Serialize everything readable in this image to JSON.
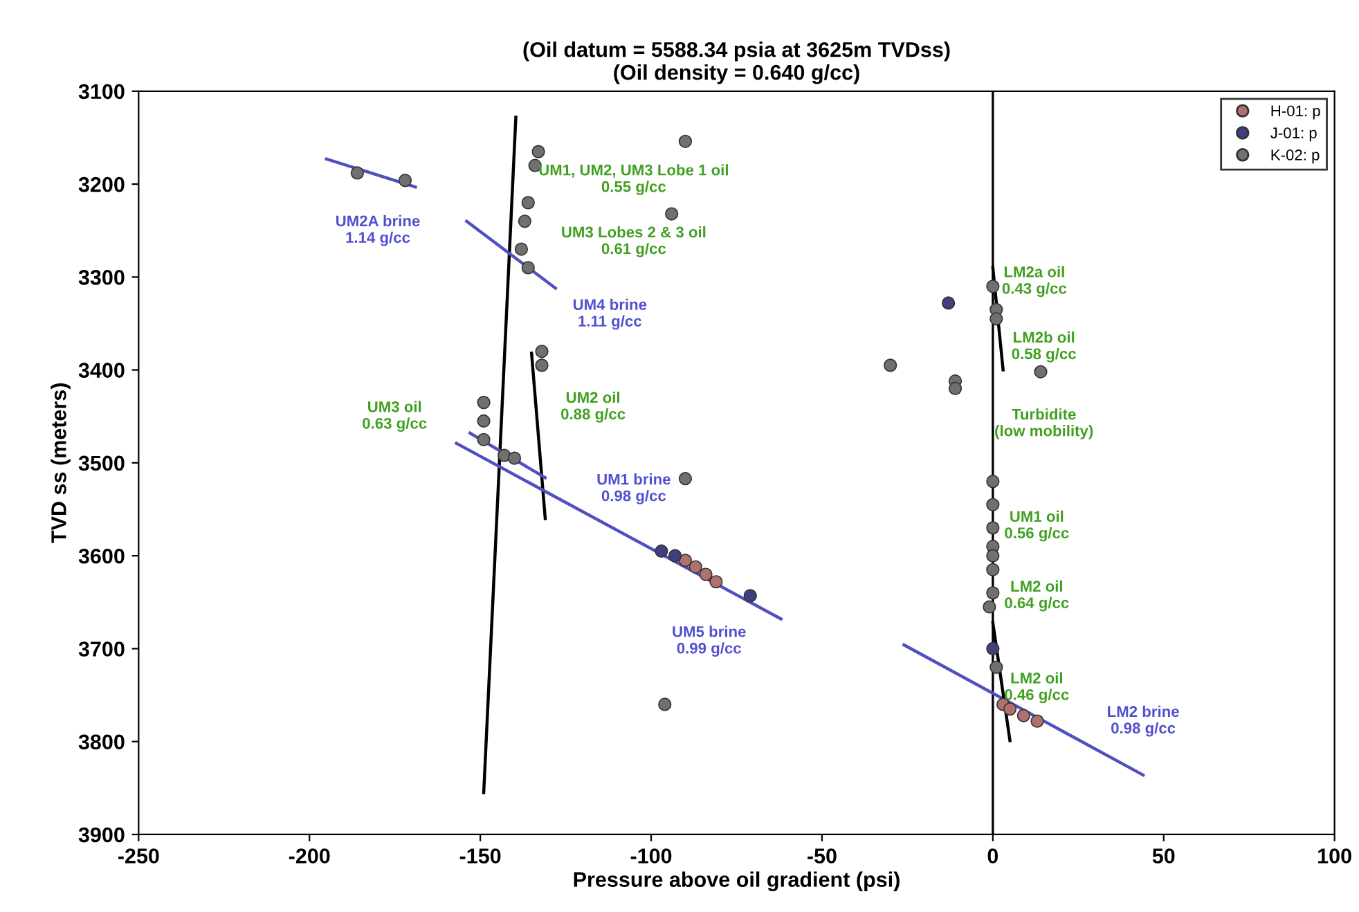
{
  "chart_data": {
    "type": "scatter",
    "title": "(Oil datum = 5588.34 psia at 3625m TVDss)\n(Oil density = 0.640 g/cc)",
    "xlabel": "Pressure above oil gradient (psi)",
    "ylabel": "TVD ss (meters)",
    "xlim": [
      -250,
      100
    ],
    "xticks": [
      -250,
      -200,
      -150,
      -100,
      -50,
      0,
      50,
      100
    ],
    "ylim": [
      3900,
      3100
    ],
    "yticks": [
      3100,
      3200,
      3300,
      3400,
      3500,
      3600,
      3700,
      3800,
      3900
    ],
    "grid": false,
    "legend": "top right",
    "series": [
      {
        "type": "line",
        "color": "#000000",
        "x": [
          -139.6,
          -149
        ],
        "values": [
          3128,
          3855
        ]
      },
      {
        "type": "line",
        "color": "#000000",
        "x": [
          -135,
          -131
        ],
        "values": [
          3382,
          3560
        ]
      },
      {
        "type": "line",
        "color": "#5050c0",
        "x": [
          -195,
          -169
        ],
        "values": [
          3173,
          3203
        ]
      },
      {
        "type": "line",
        "color": "#5050c0",
        "x": [
          -154,
          -128
        ],
        "values": [
          3240,
          3312
        ]
      },
      {
        "type": "line",
        "color": "#5050c0",
        "x": [
          -153,
          -131
        ],
        "values": [
          3468,
          3516
        ]
      },
      {
        "type": "line",
        "color": "#5050c0",
        "x": [
          -157,
          -62
        ],
        "values": [
          3479,
          3668
        ]
      },
      {
        "type": "line",
        "color": "#5050c0",
        "x": [
          -26,
          44
        ],
        "values": [
          3696,
          3836
        ]
      },
      {
        "type": "line",
        "color": "#000000",
        "x": [
          0,
          5
        ],
        "values": [
          3672,
          3799
        ]
      },
      {
        "type": "line",
        "color": "#000000",
        "x": [
          0,
          3
        ],
        "values": [
          3290,
          3400
        ]
      },
      {
        "name": "H-01: p",
        "marker": "circle",
        "color": "#b07070",
        "x": [
          -90,
          -87,
          -84,
          -81,
          3,
          5,
          9,
          13
        ],
        "values": [
          3605,
          3612,
          3620,
          3628,
          3760,
          3765,
          3772,
          3778
        ]
      },
      {
        "name": "J-01: p",
        "marker": "circle",
        "color": "#404080",
        "x": [
          -97,
          -93,
          -71,
          -13,
          0
        ],
        "values": [
          3595,
          3600,
          3643,
          3328,
          3700
        ]
      },
      {
        "name": "K-02: p",
        "marker": "circle",
        "color": "#707070",
        "x": [
          -186,
          -173,
          -172,
          -133,
          -134,
          -136,
          -137,
          -138,
          -136,
          -90,
          -94,
          -149,
          -149,
          -149,
          -132,
          -132,
          -143,
          -140,
          -90,
          -96,
          -30,
          -11,
          -11,
          0,
          1,
          1,
          14,
          0,
          0,
          0,
          0,
          0,
          0,
          0,
          -1,
          1
        ],
        "values": [
          3188,
          null,
          3196,
          3165,
          3180,
          3220,
          3240,
          3270,
          3290,
          3154,
          3232,
          3435,
          3455,
          3475,
          3380,
          3395,
          3492,
          3495,
          3517,
          3760,
          3395,
          3412,
          3420,
          3310,
          3335,
          3345,
          3402,
          3520,
          3545,
          3570,
          3590,
          3600,
          3615,
          3640,
          3655,
          3720
        ]
      }
    ],
    "ref_lines": [
      {
        "axis": "x",
        "value": 0,
        "color": "#000000",
        "line_style": "solid"
      }
    ],
    "annotations": [
      "UM2A brine\n1.14 g/cc",
      "UM1, UM2, UM3 Lobe 1 oil\n0.55 g/cc",
      "UM3 Lobes 2 & 3 oil\n0.61 g/cc",
      "UM4 brine\n1.11 g/cc",
      "UM3 oil\n0.63 g/cc",
      "UM2 oil\n0.88 g/cc",
      "UM1 brine\n0.98 g/cc",
      "UM5 brine\n0.99 g/cc",
      "LM2a oil\n0.43 g/cc",
      "LM2b oil\n0.58 g/cc",
      "Turbidite\n(low mobility)",
      "UM1 oil\n0.56 g/cc",
      "LM2 oil\n0.64 g/cc",
      "LM2 oil\n0.46 g/cc",
      "LM2 brine\n0.98 g/cc"
    ]
  }
}
